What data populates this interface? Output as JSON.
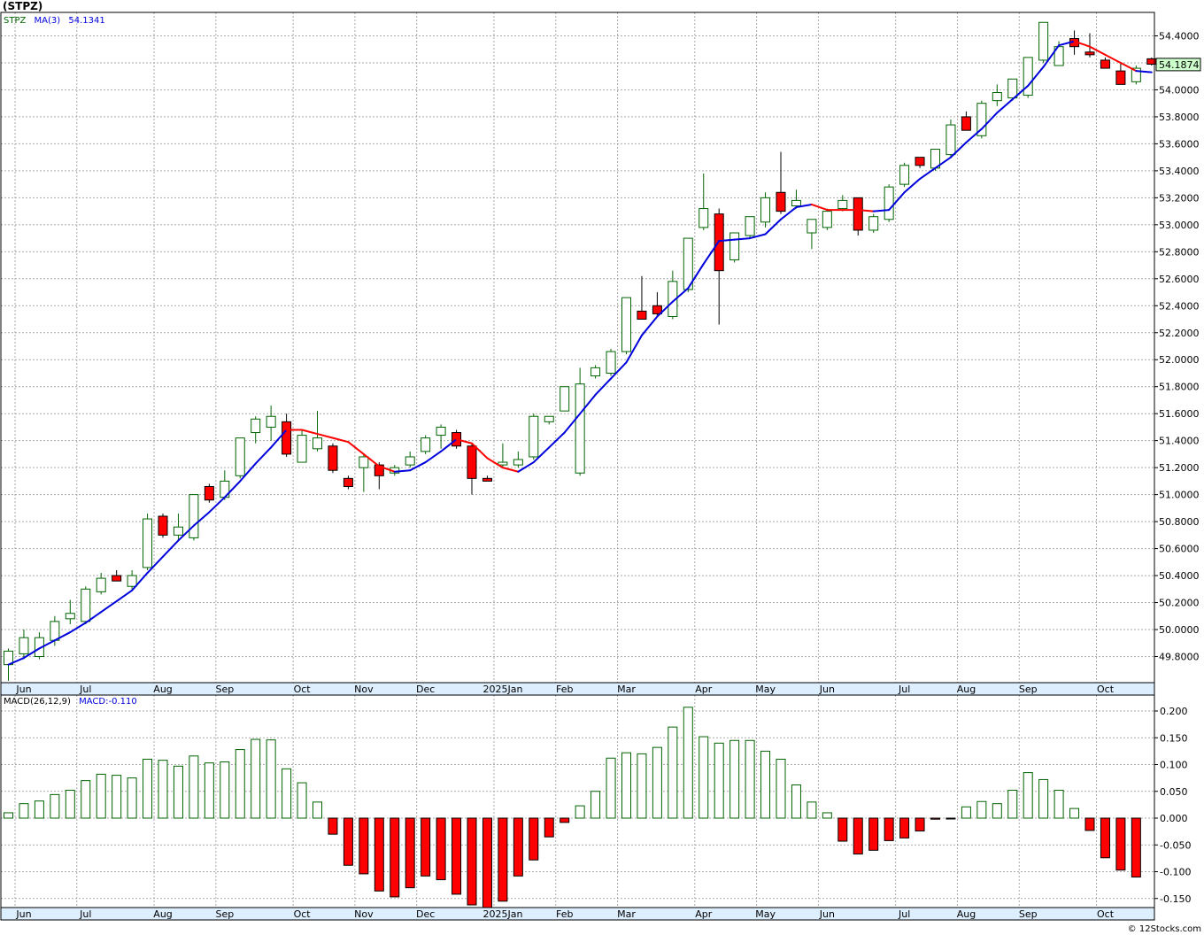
{
  "title": "(STPZ)",
  "credit": "© 12Stocks.com",
  "colors": {
    "up": "#006400",
    "down": "#ff0000",
    "ma_up": "#0000dd",
    "ma_down": "#ff0000",
    "grid": "#aaaaaa",
    "axis_band": "#ddeeff",
    "last_price_bg": "#ccffcc"
  },
  "chart_data": [
    {
      "type": "candlestick",
      "legend": {
        "symbol": "STPZ",
        "ma_label": "MA(3)",
        "ma_value": "54.1341"
      },
      "last_price_label": "54.1874",
      "ylim": [
        49.6,
        54.55
      ],
      "y_ticks": [
        "54.4000",
        "54.2000",
        "54.0000",
        "53.8000",
        "53.6000",
        "53.4000",
        "53.2000",
        "53.0000",
        "52.8000",
        "52.6000",
        "52.4000",
        "52.2000",
        "52.0000",
        "51.8000",
        "51.6000",
        "51.4000",
        "51.2000",
        "51.0000",
        "50.8000",
        "50.6000",
        "50.4000",
        "50.2000",
        "50.0000",
        "49.8000"
      ],
      "x_month_labels": [
        {
          "label": "Jun",
          "week": 1
        },
        {
          "label": "Jul",
          "week": 5
        },
        {
          "label": "Aug",
          "week": 10
        },
        {
          "label": "Sep",
          "week": 14
        },
        {
          "label": "Oct",
          "week": 19
        },
        {
          "label": "Nov",
          "week": 23
        },
        {
          "label": "Dec",
          "week": 27
        },
        {
          "label": "2025Jan",
          "week": 32
        },
        {
          "label": "Feb",
          "week": 36
        },
        {
          "label": "Mar",
          "week": 40
        },
        {
          "label": "Apr",
          "week": 45
        },
        {
          "label": "May",
          "week": 49
        },
        {
          "label": "Jun",
          "week": 53
        },
        {
          "label": "Jul",
          "week": 58
        },
        {
          "label": "Aug",
          "week": 62
        },
        {
          "label": "Sep",
          "week": 66
        },
        {
          "label": "Oct",
          "week": 71
        }
      ],
      "candles": [
        {
          "o": 49.74,
          "h": 49.86,
          "l": 49.62,
          "c": 49.84
        },
        {
          "o": 49.82,
          "h": 50.0,
          "l": 49.78,
          "c": 49.94
        },
        {
          "o": 49.8,
          "h": 49.98,
          "l": 49.78,
          "c": 49.94
        },
        {
          "o": 49.92,
          "h": 50.1,
          "l": 49.88,
          "c": 50.06
        },
        {
          "o": 50.08,
          "h": 50.22,
          "l": 50.04,
          "c": 50.12
        },
        {
          "o": 50.06,
          "h": 50.32,
          "l": 50.04,
          "c": 50.3
        },
        {
          "o": 50.28,
          "h": 50.42,
          "l": 50.26,
          "c": 50.38
        },
        {
          "o": 50.4,
          "h": 50.44,
          "l": 50.38,
          "c": 50.36
        },
        {
          "o": 50.32,
          "h": 50.44,
          "l": 50.3,
          "c": 50.4
        },
        {
          "o": 50.46,
          "h": 50.86,
          "l": 50.44,
          "c": 50.82
        },
        {
          "o": 50.84,
          "h": 50.86,
          "l": 50.68,
          "c": 50.7
        },
        {
          "o": 50.7,
          "h": 50.86,
          "l": 50.66,
          "c": 50.76
        },
        {
          "o": 50.68,
          "h": 51.0,
          "l": 50.66,
          "c": 51.0
        },
        {
          "o": 51.06,
          "h": 51.08,
          "l": 50.94,
          "c": 50.96
        },
        {
          "o": 50.98,
          "h": 51.18,
          "l": 50.96,
          "c": 51.1
        },
        {
          "o": 51.14,
          "h": 51.42,
          "l": 51.12,
          "c": 51.42
        },
        {
          "o": 51.46,
          "h": 51.58,
          "l": 51.38,
          "c": 51.56
        },
        {
          "o": 51.5,
          "h": 51.66,
          "l": 51.4,
          "c": 51.58
        },
        {
          "o": 51.54,
          "h": 51.6,
          "l": 51.28,
          "c": 51.3
        },
        {
          "o": 51.24,
          "h": 51.48,
          "l": 51.24,
          "c": 51.44
        },
        {
          "o": 51.34,
          "h": 51.62,
          "l": 51.32,
          "c": 51.42
        },
        {
          "o": 51.36,
          "h": 51.38,
          "l": 51.16,
          "c": 51.18
        },
        {
          "o": 51.12,
          "h": 51.14,
          "l": 51.04,
          "c": 51.06
        },
        {
          "o": 51.2,
          "h": 51.3,
          "l": 51.02,
          "c": 51.28
        },
        {
          "o": 51.22,
          "h": 51.24,
          "l": 51.04,
          "c": 51.14
        },
        {
          "o": 51.16,
          "h": 51.22,
          "l": 51.14,
          "c": 51.2
        },
        {
          "o": 51.22,
          "h": 51.32,
          "l": 51.2,
          "c": 51.28
        },
        {
          "o": 51.32,
          "h": 51.44,
          "l": 51.3,
          "c": 51.42
        },
        {
          "o": 51.44,
          "h": 51.52,
          "l": 51.34,
          "c": 51.5
        },
        {
          "o": 51.46,
          "h": 51.48,
          "l": 51.34,
          "c": 51.36
        },
        {
          "o": 51.36,
          "h": 51.38,
          "l": 51.0,
          "c": 51.12
        },
        {
          "o": 51.12,
          "h": 51.14,
          "l": 51.1,
          "c": 51.1
        },
        {
          "o": 51.22,
          "h": 51.38,
          "l": 51.2,
          "c": 51.24
        },
        {
          "o": 51.22,
          "h": 51.32,
          "l": 51.2,
          "c": 51.26
        },
        {
          "o": 51.28,
          "h": 51.6,
          "l": 51.26,
          "c": 51.58
        },
        {
          "o": 51.54,
          "h": 51.58,
          "l": 51.52,
          "c": 51.58
        },
        {
          "o": 51.62,
          "h": 51.8,
          "l": 51.62,
          "c": 51.8
        },
        {
          "o": 51.16,
          "h": 51.94,
          "l": 51.14,
          "c": 51.82
        },
        {
          "o": 51.88,
          "h": 51.96,
          "l": 51.86,
          "c": 51.94
        },
        {
          "o": 51.9,
          "h": 52.08,
          "l": 51.88,
          "c": 52.06
        },
        {
          "o": 52.06,
          "h": 52.46,
          "l": 52.04,
          "c": 52.46
        },
        {
          "o": 52.36,
          "h": 52.62,
          "l": 52.32,
          "c": 52.3
        },
        {
          "o": 52.4,
          "h": 52.5,
          "l": 52.32,
          "c": 52.34
        },
        {
          "o": 52.32,
          "h": 52.66,
          "l": 52.3,
          "c": 52.58
        },
        {
          "o": 52.52,
          "h": 52.9,
          "l": 52.5,
          "c": 52.9
        },
        {
          "o": 52.98,
          "h": 53.38,
          "l": 52.96,
          "c": 53.12
        },
        {
          "o": 53.08,
          "h": 53.12,
          "l": 52.26,
          "c": 52.66
        },
        {
          "o": 52.74,
          "h": 52.94,
          "l": 52.72,
          "c": 52.94
        },
        {
          "o": 52.92,
          "h": 53.06,
          "l": 52.9,
          "c": 53.06
        },
        {
          "o": 53.02,
          "h": 53.24,
          "l": 52.98,
          "c": 53.2
        },
        {
          "o": 53.24,
          "h": 53.54,
          "l": 53.08,
          "c": 53.1
        },
        {
          "o": 53.14,
          "h": 53.26,
          "l": 53.12,
          "c": 53.18
        },
        {
          "o": 52.94,
          "h": 53.04,
          "l": 52.82,
          "c": 53.04
        },
        {
          "o": 52.98,
          "h": 53.12,
          "l": 52.96,
          "c": 53.1
        },
        {
          "o": 53.12,
          "h": 53.22,
          "l": 53.1,
          "c": 53.18
        },
        {
          "o": 53.2,
          "h": 53.2,
          "l": 52.92,
          "c": 52.96
        },
        {
          "o": 52.96,
          "h": 53.08,
          "l": 52.94,
          "c": 53.06
        },
        {
          "o": 53.04,
          "h": 53.3,
          "l": 53.02,
          "c": 53.28
        },
        {
          "o": 53.3,
          "h": 53.46,
          "l": 53.28,
          "c": 53.44
        },
        {
          "o": 53.5,
          "h": 53.5,
          "l": 53.42,
          "c": 53.44
        },
        {
          "o": 53.42,
          "h": 53.56,
          "l": 53.4,
          "c": 53.56
        },
        {
          "o": 53.52,
          "h": 53.78,
          "l": 53.5,
          "c": 53.74
        },
        {
          "o": 53.8,
          "h": 53.84,
          "l": 53.7,
          "c": 53.7
        },
        {
          "o": 53.66,
          "h": 53.92,
          "l": 53.64,
          "c": 53.9
        },
        {
          "o": 53.92,
          "h": 54.04,
          "l": 53.88,
          "c": 53.98
        },
        {
          "o": 53.94,
          "h": 54.08,
          "l": 53.92,
          "c": 54.08
        },
        {
          "o": 53.96,
          "h": 54.24,
          "l": 53.94,
          "c": 54.24
        },
        {
          "o": 54.22,
          "h": 54.5,
          "l": 54.2,
          "c": 54.5
        },
        {
          "o": 54.18,
          "h": 54.36,
          "l": 54.18,
          "c": 54.32
        },
        {
          "o": 54.38,
          "h": 54.44,
          "l": 54.26,
          "c": 54.32
        },
        {
          "o": 54.28,
          "h": 54.42,
          "l": 54.24,
          "c": 54.26
        },
        {
          "o": 54.22,
          "h": 54.24,
          "l": 54.16,
          "c": 54.16
        },
        {
          "o": 54.14,
          "h": 54.2,
          "l": 54.04,
          "c": 54.04
        },
        {
          "o": 54.06,
          "h": 54.18,
          "l": 54.04,
          "c": 54.16
        },
        {
          "o": 54.23,
          "h": 54.24,
          "l": 54.18,
          "c": 54.19
        }
      ],
      "ma": [
        49.74,
        49.79,
        49.86,
        49.92,
        49.98,
        50.05,
        50.13,
        50.21,
        50.29,
        50.42,
        50.54,
        50.66,
        50.77,
        50.87,
        50.98,
        51.1,
        51.23,
        51.35,
        51.48,
        51.48,
        51.45,
        51.42,
        51.39,
        51.3,
        51.21,
        51.17,
        51.18,
        51.24,
        51.32,
        51.41,
        51.38,
        51.27,
        51.2,
        51.17,
        51.24,
        51.35,
        51.46,
        51.6,
        51.74,
        51.86,
        51.98,
        52.18,
        52.32,
        52.43,
        52.53,
        52.71,
        52.88,
        52.89,
        52.9,
        52.93,
        53.04,
        53.13,
        53.15,
        53.11,
        53.11,
        53.11,
        53.1,
        53.11,
        53.24,
        53.34,
        53.42,
        53.5,
        53.61,
        53.71,
        53.83,
        53.93,
        54.03,
        54.17,
        54.33,
        54.36,
        54.32,
        54.26,
        54.2,
        54.14,
        54.13
      ],
      "ma_direction": [
        "u",
        "u",
        "u",
        "u",
        "u",
        "u",
        "u",
        "u",
        "u",
        "u",
        "u",
        "u",
        "u",
        "u",
        "u",
        "u",
        "u",
        "u",
        "u",
        "d",
        "d",
        "d",
        "d",
        "d",
        "d",
        "d",
        "u",
        "u",
        "u",
        "u",
        "d",
        "d",
        "d",
        "d",
        "u",
        "u",
        "u",
        "u",
        "u",
        "u",
        "u",
        "u",
        "u",
        "u",
        "u",
        "u",
        "u",
        "u",
        "u",
        "u",
        "u",
        "u",
        "u",
        "d",
        "d",
        "d",
        "d",
        "u",
        "u",
        "u",
        "u",
        "u",
        "u",
        "u",
        "u",
        "u",
        "u",
        "u",
        "u",
        "u",
        "d",
        "d",
        "d",
        "d",
        "u"
      ]
    },
    {
      "type": "bar",
      "legend": {
        "label": "MACD(26,12,9)",
        "value_label": "MACD:-0.110"
      },
      "ylim": [
        -0.168,
        0.215
      ],
      "y_ticks": [
        "0.200",
        "0.150",
        "0.100",
        "0.050",
        "0.000",
        "-0.050",
        "-0.100",
        "-0.150"
      ],
      "values": [
        0.01,
        0.027,
        0.032,
        0.044,
        0.052,
        0.07,
        0.082,
        0.08,
        0.075,
        0.11,
        0.108,
        0.097,
        0.116,
        0.103,
        0.105,
        0.128,
        0.147,
        0.146,
        0.092,
        0.066,
        0.03,
        -0.03,
        -0.088,
        -0.104,
        -0.136,
        -0.147,
        -0.13,
        -0.108,
        -0.115,
        -0.142,
        -0.162,
        -0.17,
        -0.155,
        -0.108,
        -0.078,
        -0.035,
        -0.008,
        0.023,
        0.05,
        0.112,
        0.122,
        0.12,
        0.132,
        0.17,
        0.207,
        0.152,
        0.14,
        0.145,
        0.145,
        0.125,
        0.11,
        0.062,
        0.03,
        0.01,
        -0.043,
        -0.067,
        -0.06,
        -0.042,
        -0.037,
        -0.024,
        -0.002,
        -0.001,
        0.021,
        0.031,
        0.027,
        0.052,
        0.085,
        0.072,
        0.052,
        0.018,
        -0.023,
        -0.074,
        -0.097,
        -0.11
      ]
    }
  ]
}
